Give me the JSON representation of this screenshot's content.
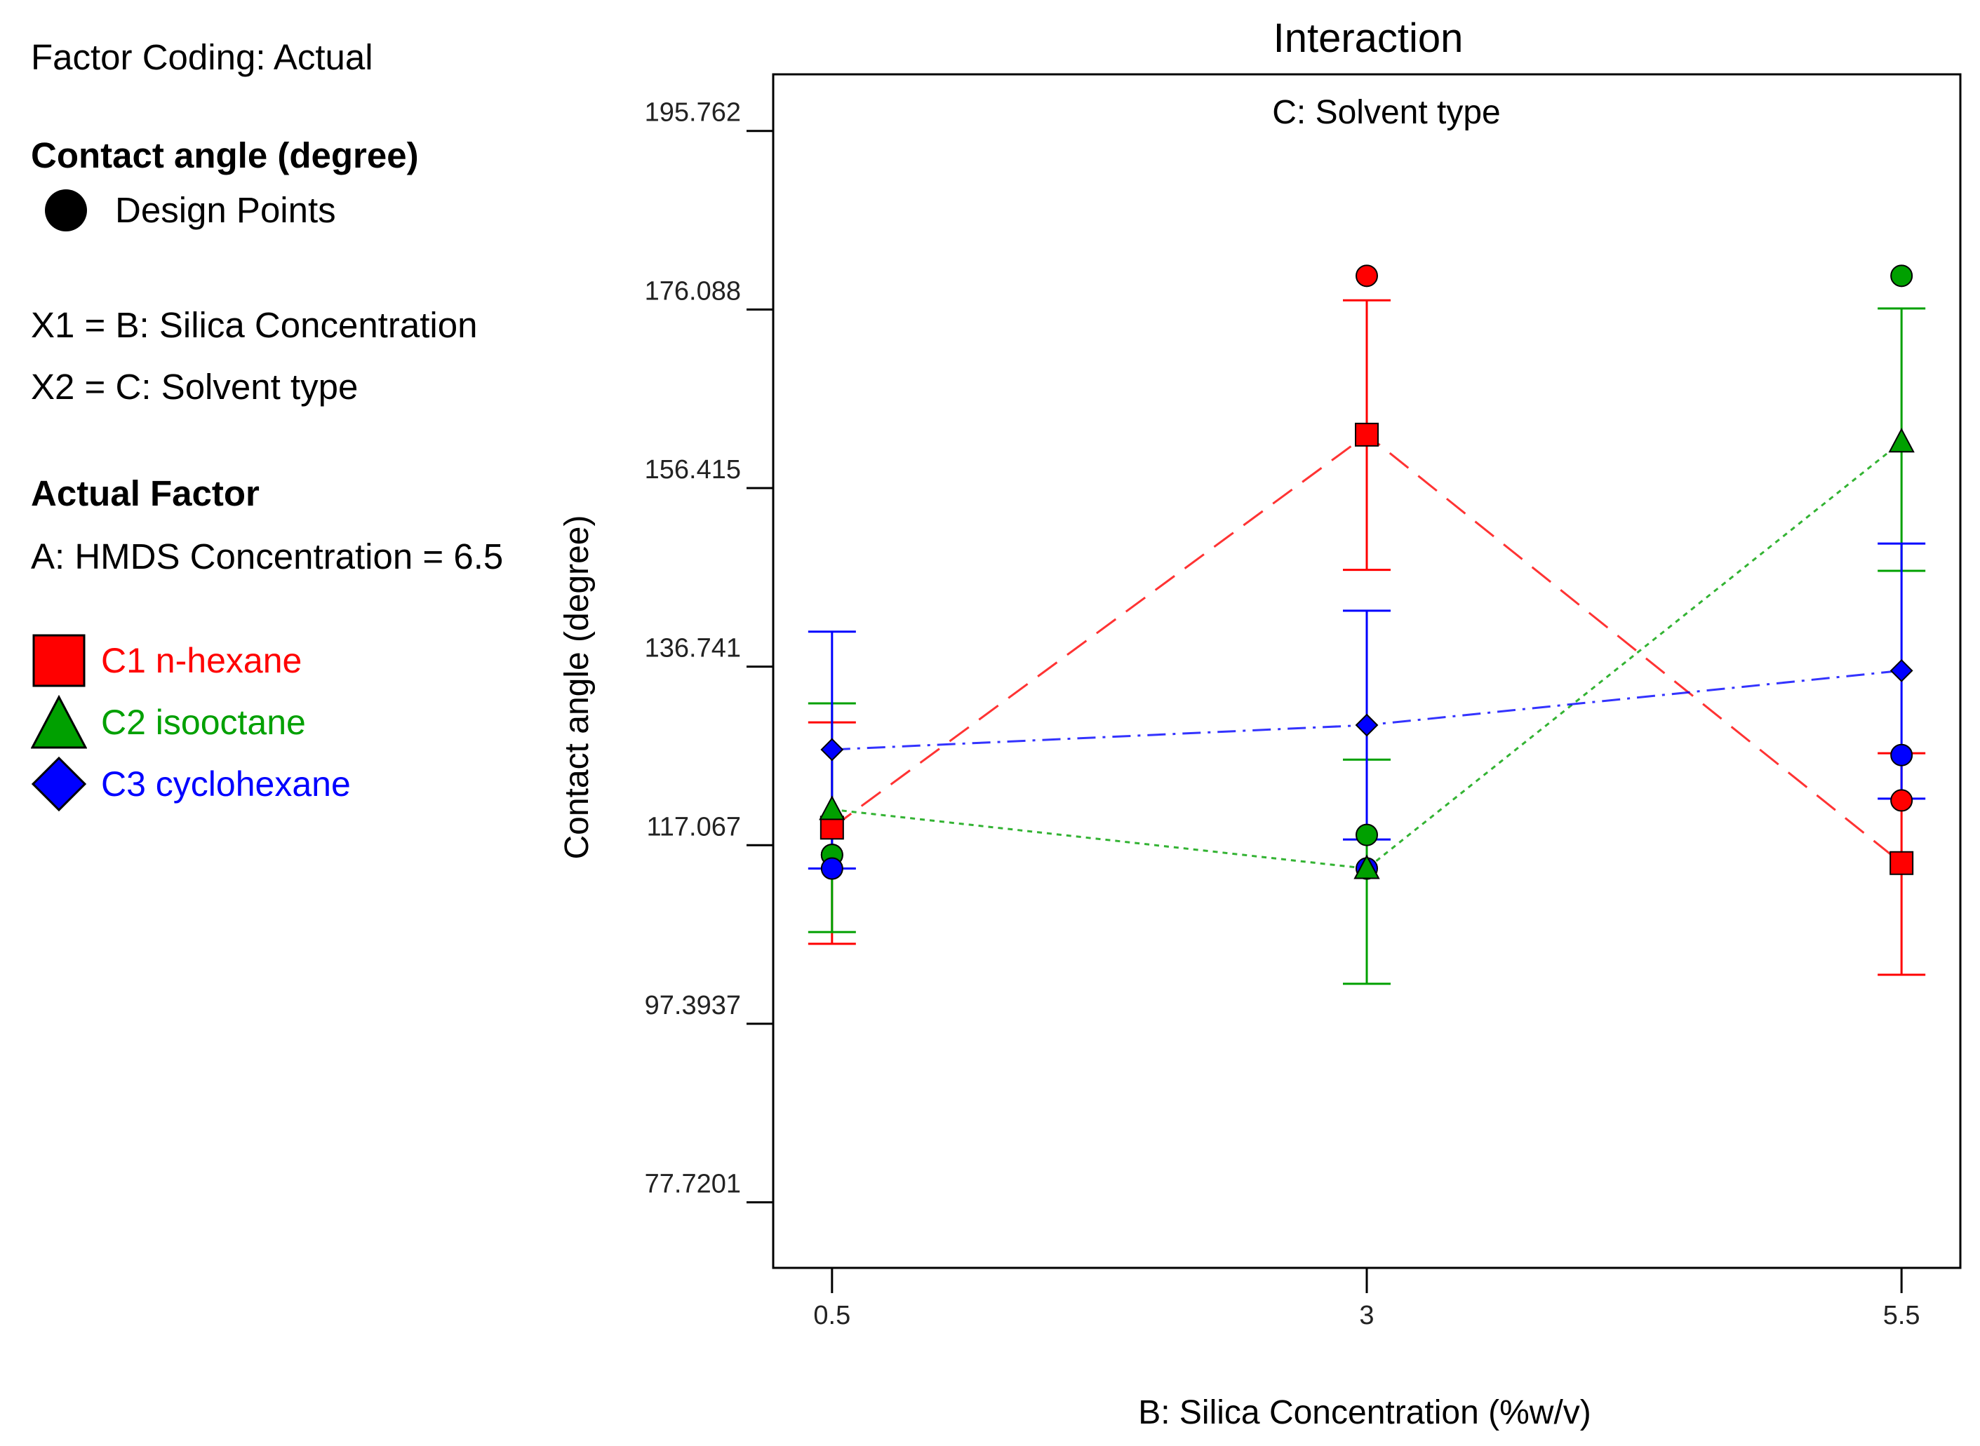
{
  "legend_panel": {
    "factor_coding": "Factor Coding: Actual",
    "response_title": "Contact angle (degree)",
    "design_points_label": "Design Points",
    "x1_label": "X1 = B: Silica Concentration",
    "x2_label": "X2 = C: Solvent type",
    "actual_factor_title": "Actual Factor",
    "actual_factor_value": "A: HMDS Concentration = 6.5"
  },
  "chart_data": {
    "type": "line",
    "title": "Interaction",
    "subtitle": "C: Solvent type",
    "xlabel": "B: Silica Concentration (%w/v)",
    "ylabel": "Contact angle (degree)",
    "x": [
      0.5,
      3,
      5.5
    ],
    "x_tick_labels": [
      "0.5",
      "3",
      "5.5"
    ],
    "xlim": [
      0.225,
      5.775
    ],
    "y_ticks": [
      77.7201,
      97.3937,
      117.067,
      136.741,
      156.415,
      176.088,
      195.762
    ],
    "y_tick_labels": [
      "77.7201",
      "97.3937",
      "117.067",
      "136.741",
      "156.415",
      "176.088",
      "195.762"
    ],
    "ylim": [
      70.5,
      202.0
    ],
    "series": [
      {
        "name": "C1 n-hexane",
        "color": "#ff0000",
        "marker": "square",
        "dash": "34,18",
        "values": [
          119.0,
          162.3,
          115.1
        ],
        "ci_low": [
          106.2,
          147.4,
          102.8
        ],
        "ci_high": [
          130.6,
          177.1,
          127.2
        ],
        "design_points": [
          [
            0.5,
            116.0
          ],
          [
            3,
            179.8
          ],
          [
            5.5,
            122.0
          ]
        ]
      },
      {
        "name": "C2 isooctane",
        "color": "#00a000",
        "marker": "triangle",
        "dash": "7,7",
        "values": [
          121.0,
          114.5,
          161.5
        ],
        "ci_low": [
          107.5,
          101.8,
          147.3
        ],
        "ci_high": [
          132.7,
          126.5,
          176.2
        ],
        "design_points": [
          [
            0.5,
            116.0
          ],
          [
            3,
            118.2
          ],
          [
            5.5,
            179.8
          ]
        ]
      },
      {
        "name": "C3 cyclohexane",
        "color": "#0000ff",
        "marker": "diamond",
        "dash": "26,10,4,10",
        "values": [
          127.6,
          130.3,
          136.3
        ],
        "ci_low": [
          114.5,
          117.7,
          122.2
        ],
        "ci_high": [
          140.6,
          142.9,
          150.3
        ],
        "design_points": [
          [
            0.5,
            114.5
          ],
          [
            3,
            114.5
          ],
          [
            5.5,
            127.0
          ]
        ]
      }
    ]
  }
}
